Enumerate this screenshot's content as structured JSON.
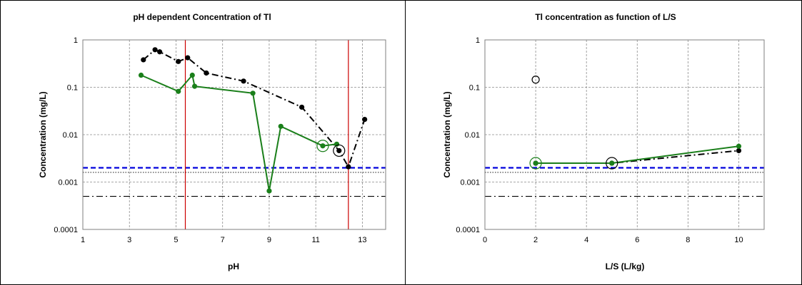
{
  "chart_data": [
    {
      "type": "line",
      "title": "pH dependent  Concentration  of Tl",
      "xlabel": "pH",
      "ylabel": "Concentration  (mg/L)",
      "x_ticks": [
        "1",
        "3",
        "5",
        "7",
        "9",
        "11",
        "13"
      ],
      "y_ticks": [
        "0.0001",
        "0.001",
        "0.01",
        "0.1",
        "1"
      ],
      "xlim": [
        1,
        14
      ],
      "ylim": [
        0.0001,
        1
      ],
      "yscale": "log",
      "grid": true,
      "series": [
        {
          "color": "#000000",
          "dash": "dashdot",
          "x": [
            3.6,
            4.1,
            4.3,
            5.1,
            5.5,
            6.3,
            7.9,
            10.4,
            12.0,
            12.4,
            13.1
          ],
          "y": [
            0.38,
            0.62,
            0.56,
            0.35,
            0.42,
            0.2,
            0.135,
            0.038,
            0.0046,
            0.0021,
            0.021
          ]
        },
        {
          "color": "#1a7f1a",
          "dash": "solid",
          "x": [
            3.5,
            5.1,
            5.7,
            5.8,
            8.3,
            9.0,
            9.5,
            11.3,
            11.9
          ],
          "y": [
            0.18,
            0.082,
            0.18,
            0.105,
            0.075,
            0.00065,
            0.015,
            0.0058,
            0.0063
          ]
        }
      ],
      "circled_points": [
        {
          "color": "#1a7f1a",
          "x": 11.3,
          "y": 0.0058
        },
        {
          "color": "#000000",
          "x": 12.0,
          "y": 0.0046
        }
      ],
      "vertical_lines": [
        {
          "x": 5.4,
          "color": "#cc0000"
        },
        {
          "x": 12.4,
          "color": "#cc0000"
        }
      ],
      "reference_lines": [
        {
          "y": 0.002,
          "color": "#0000dd",
          "style": "dashed"
        },
        {
          "y": 0.0016,
          "color": "#333333",
          "style": "dotted"
        },
        {
          "y": 0.0005,
          "color": "#000000",
          "style": "dashdot"
        }
      ]
    },
    {
      "type": "line",
      "title": "Tl concentration  as function  of L/S",
      "xlabel": "L/S (L/kg)",
      "ylabel": "Concentration  (mg/L)",
      "x_ticks": [
        "0",
        "2",
        "4",
        "6",
        "8",
        "10"
      ],
      "y_ticks": [
        "0.0001",
        "0.001",
        "0.01",
        "0.1",
        "1"
      ],
      "xlim": [
        0,
        11
      ],
      "ylim": [
        0.0001,
        1
      ],
      "yscale": "log",
      "grid": true,
      "series": [
        {
          "color": "#000000",
          "dash": "dashdot",
          "x": [
            2,
            5,
            10
          ],
          "y": [
            0.0025,
            0.0025,
            0.0046
          ]
        },
        {
          "color": "#1a7f1a",
          "dash": "solid",
          "x": [
            2,
            5,
            10
          ],
          "y": [
            0.0025,
            0.0025,
            0.0057
          ]
        }
      ],
      "circled_points": [
        {
          "color": "#000000",
          "x": 2,
          "y": 0.145,
          "hollow": true
        },
        {
          "color": "#1a7f1a",
          "x": 2,
          "y": 0.0025
        },
        {
          "color": "#000000",
          "x": 5,
          "y": 0.0025
        }
      ],
      "vertical_lines": [],
      "reference_lines": [
        {
          "y": 0.002,
          "color": "#0000dd",
          "style": "dashed"
        },
        {
          "y": 0.0016,
          "color": "#333333",
          "style": "dotted"
        },
        {
          "y": 0.0005,
          "color": "#000000",
          "style": "dashdot"
        }
      ]
    }
  ]
}
